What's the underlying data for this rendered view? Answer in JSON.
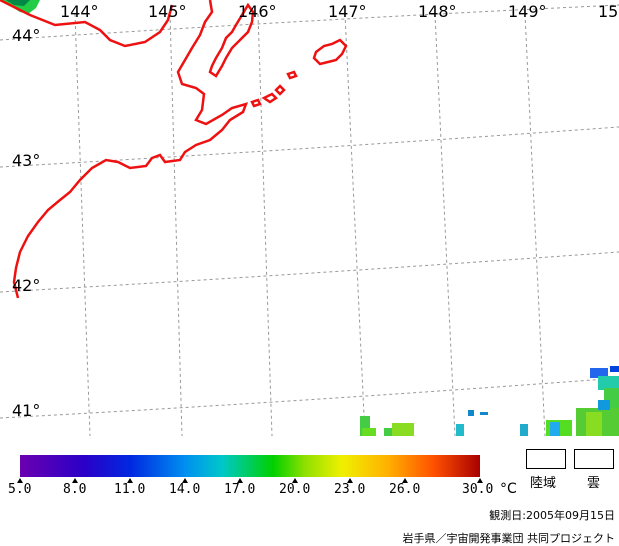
{
  "map": {
    "longitude_labels": [
      "144°",
      "145°",
      "146°",
      "147°",
      "148°",
      "149°",
      "15"
    ],
    "latitude_labels": [
      "44°",
      "43°",
      "42°",
      "41°"
    ],
    "coastline_color": "#ee1111",
    "grid_color": "#999999"
  },
  "legend": {
    "ticks": [
      "5.0",
      "8.0",
      "11.0",
      "14.0",
      "17.0",
      "20.0",
      "23.0",
      "26.0",
      "30.0"
    ],
    "unit": "°C",
    "land_label": "陸域",
    "cloud_label": "雲",
    "range_min": 5.0,
    "range_max": 30.0
  },
  "footer": {
    "observation_date": "観測日:2005年09月15日",
    "credit": "岩手県／宇宙開発事業団 共同プロジェクト"
  }
}
